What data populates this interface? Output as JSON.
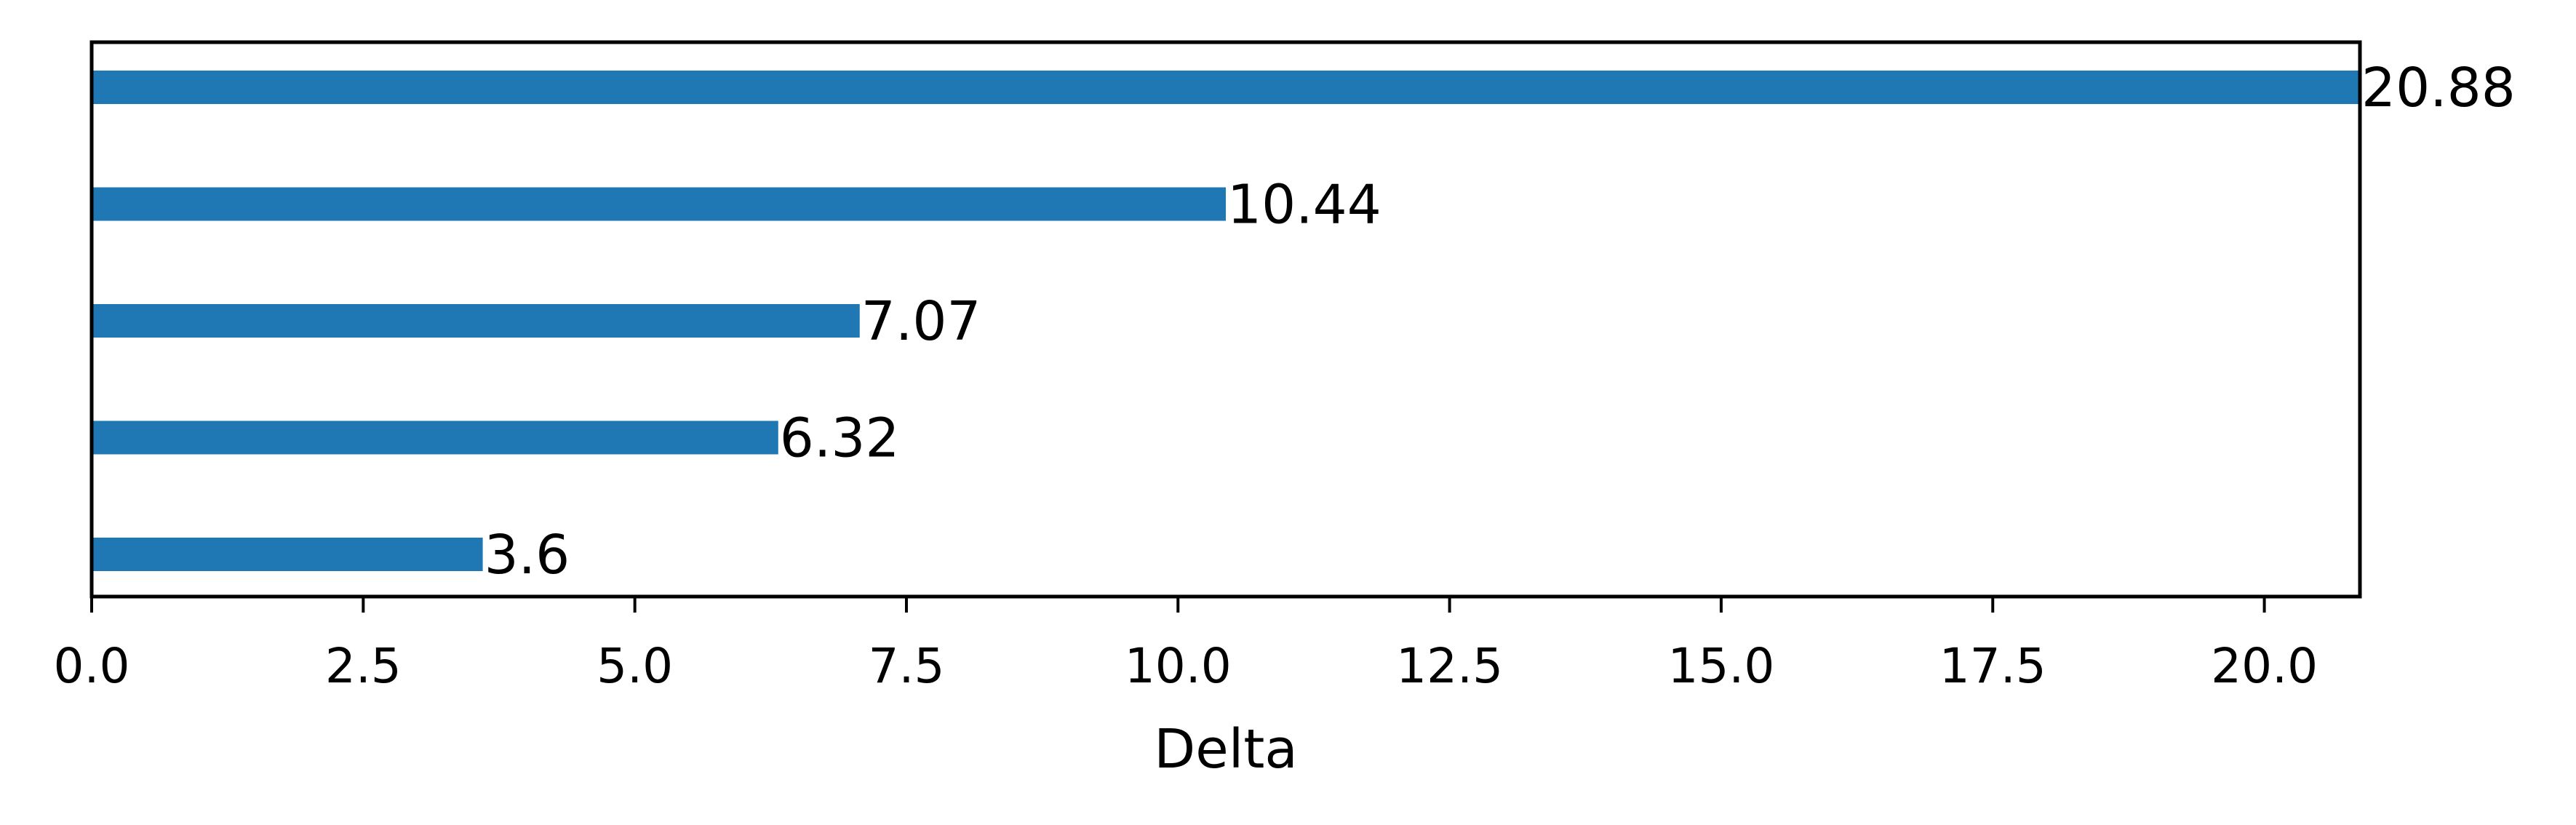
{
  "chart_data": {
    "type": "bar",
    "orientation": "horizontal",
    "bars_top_to_bottom": [
      {
        "value": 20.88,
        "label": "20.88"
      },
      {
        "value": 10.44,
        "label": "10.44"
      },
      {
        "value": 7.07,
        "label": "7.07"
      },
      {
        "value": 6.32,
        "label": "6.32"
      },
      {
        "value": 3.6,
        "label": "3.6"
      }
    ],
    "xlabel": "Delta",
    "ylabel": "",
    "title": "",
    "xlim": [
      0,
      20.88
    ],
    "xticks": [
      {
        "value": 0,
        "label": "0.0"
      },
      {
        "value": 2.5,
        "label": "2.5"
      },
      {
        "value": 5,
        "label": "5.0"
      },
      {
        "value": 7.5,
        "label": "7.5"
      },
      {
        "value": 10,
        "label": "10.0"
      },
      {
        "value": 12.5,
        "label": "12.5"
      },
      {
        "value": 15,
        "label": "15.0"
      },
      {
        "value": 17.5,
        "label": "17.5"
      },
      {
        "value": 20,
        "label": "20.0"
      }
    ],
    "bar_color": "#1f77b4",
    "grid": false,
    "legend": "none"
  }
}
